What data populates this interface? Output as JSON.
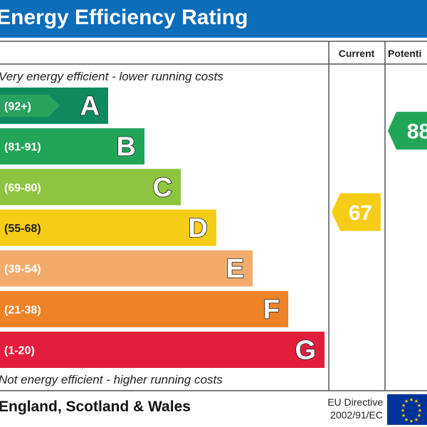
{
  "title": "Energy Efficiency Rating",
  "columns": {
    "current": "Current",
    "potential": "Potenti"
  },
  "notes": {
    "top": "Very energy efficient - lower running costs",
    "bottom": "Not energy efficient - higher running costs"
  },
  "footer": {
    "region": "England, Scotland & Wales",
    "directive_line1": "EU Directive",
    "directive_line2": "2002/91/EC"
  },
  "chart_data": {
    "type": "bar",
    "orientation": "horizontal",
    "bands": [
      {
        "letter": "A",
        "range": "(92+)",
        "min": 92,
        "max": 100,
        "color": "#0f8a5f"
      },
      {
        "letter": "B",
        "range": "(81-91)",
        "min": 81,
        "max": 91,
        "color": "#21a658"
      },
      {
        "letter": "C",
        "range": "(69-80)",
        "min": 69,
        "max": 80,
        "color": "#8ec43f"
      },
      {
        "letter": "D",
        "range": "(55-68)",
        "min": 55,
        "max": 68,
        "color": "#f5cd16"
      },
      {
        "letter": "E",
        "range": "(39-54)",
        "min": 39,
        "max": 54,
        "color": "#f2ab6c"
      },
      {
        "letter": "F",
        "range": "(21-38)",
        "min": 21,
        "max": 38,
        "color": "#ee8227"
      },
      {
        "letter": "G",
        "range": "(1-20)",
        "min": 1,
        "max": 20,
        "color": "#e31d3c"
      }
    ],
    "current": {
      "value": 67,
      "band": "D",
      "color": "#f5cd16"
    },
    "potential": {
      "value": 88,
      "band": "B",
      "color": "#21a658"
    }
  }
}
